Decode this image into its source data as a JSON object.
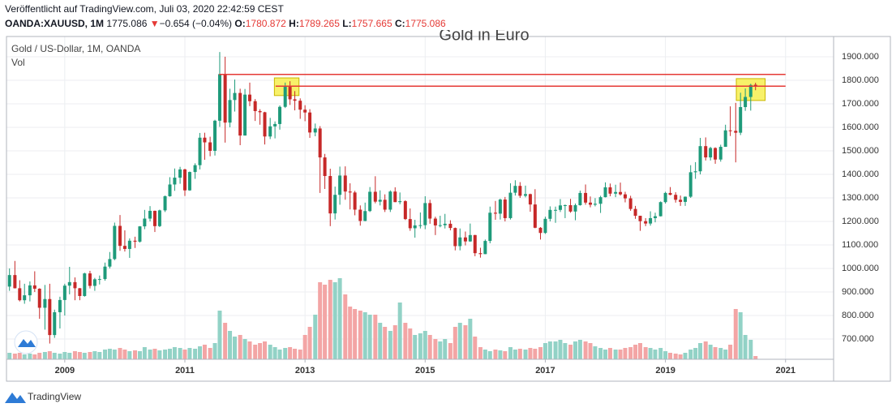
{
  "header": {
    "published": "Veröffentlicht auf TradingView.com, Juli 03, 2020 22:42:59 CEST",
    "symbol": "OANDA:XAUUSD, 1M",
    "last": "1775.086",
    "arrow": "▼",
    "change": "−0.654 (−0.04%)",
    "ohlc": [
      {
        "label": "O:",
        "value": "1780.872"
      },
      {
        "label": "H:",
        "value": "1789.265"
      },
      {
        "label": "L:",
        "value": "1757.665"
      },
      {
        "label": "C:",
        "value": "1775.086"
      }
    ]
  },
  "footer": "TradingView",
  "chart_data": {
    "type": "candlestick",
    "title": "Gold in Euro",
    "name": "Gold / US-Dollar, 1M, OANDA",
    "up_color": "#1e9a7a",
    "down_color": "#c62828",
    "grid": true,
    "xlim": [
      2008.03,
      2021.8
    ],
    "xticks": [
      2009,
      2011,
      2013,
      2015,
      2017,
      2019,
      2021
    ],
    "ylim": [
      614,
      1986
    ],
    "yticks": [
      {
        "value": 700,
        "label": "700.000"
      },
      {
        "value": 800,
        "label": "800.000"
      },
      {
        "value": 900,
        "label": "900.000"
      },
      {
        "value": 1000,
        "label": "1000.000"
      },
      {
        "value": 1100,
        "label": "1100.000"
      },
      {
        "value": 1200,
        "label": "1200.000"
      },
      {
        "value": 1300,
        "label": "1300.000"
      },
      {
        "value": 1400,
        "label": "1400.000"
      },
      {
        "value": 1500,
        "label": "1500.000"
      },
      {
        "value": 1600,
        "label": "1600.000"
      },
      {
        "value": 1700,
        "label": "1700.000"
      },
      {
        "value": 1800,
        "label": "1800.000"
      },
      {
        "value": 1900,
        "label": "1900.000"
      }
    ],
    "x": [
      2008.08,
      2008.17,
      2008.25,
      2008.33,
      2008.42,
      2008.5,
      2008.58,
      2008.67,
      2008.75,
      2008.83,
      2008.92,
      2009,
      2009.08,
      2009.17,
      2009.25,
      2009.33,
      2009.42,
      2009.5,
      2009.58,
      2009.67,
      2009.75,
      2009.83,
      2009.92,
      2010,
      2010.08,
      2010.17,
      2010.25,
      2010.33,
      2010.42,
      2010.5,
      2010.58,
      2010.67,
      2010.75,
      2010.83,
      2010.92,
      2011,
      2011.08,
      2011.17,
      2011.25,
      2011.33,
      2011.42,
      2011.5,
      2011.58,
      2011.67,
      2011.75,
      2011.83,
      2011.92,
      2012,
      2012.08,
      2012.17,
      2012.25,
      2012.33,
      2012.42,
      2012.5,
      2012.58,
      2012.67,
      2012.75,
      2012.83,
      2012.92,
      2013,
      2013.08,
      2013.17,
      2013.25,
      2013.33,
      2013.42,
      2013.5,
      2013.58,
      2013.67,
      2013.75,
      2013.83,
      2013.92,
      2014,
      2014.08,
      2014.17,
      2014.25,
      2014.33,
      2014.42,
      2014.5,
      2014.58,
      2014.67,
      2014.75,
      2014.83,
      2014.92,
      2015,
      2015.08,
      2015.17,
      2015.25,
      2015.33,
      2015.42,
      2015.5,
      2015.58,
      2015.67,
      2015.75,
      2015.83,
      2015.92,
      2016,
      2016.08,
      2016.17,
      2016.25,
      2016.33,
      2016.42,
      2016.5,
      2016.58,
      2016.67,
      2016.75,
      2016.83,
      2016.92,
      2017,
      2017.08,
      2017.17,
      2017.25,
      2017.33,
      2017.42,
      2017.5,
      2017.58,
      2017.67,
      2017.75,
      2017.83,
      2017.92,
      2018,
      2018.08,
      2018.17,
      2018.25,
      2018.33,
      2018.42,
      2018.5,
      2018.58,
      2018.67,
      2018.75,
      2018.83,
      2018.92,
      2019,
      2019.08,
      2019.17,
      2019.25,
      2019.33,
      2019.42,
      2019.5,
      2019.58,
      2019.67,
      2019.75,
      2019.83,
      2019.92,
      2020,
      2020.08,
      2020.17,
      2020.25,
      2020.33,
      2020.42,
      2020.5
    ],
    "candles": [
      [
        923,
        1000,
        905,
        972
      ],
      [
        972,
        1032,
        915,
        916
      ],
      [
        916,
        950,
        860,
        865
      ],
      [
        865,
        935,
        850,
        886
      ],
      [
        886,
        945,
        860,
        928
      ],
      [
        928,
        988,
        900,
        914
      ],
      [
        914,
        916,
        786,
        833
      ],
      [
        833,
        930,
        740,
        870
      ],
      [
        870,
        935,
        681,
        717
      ],
      [
        717,
        825,
        705,
        814
      ],
      [
        814,
        880,
        745,
        866
      ],
      [
        866,
        935,
        800,
        927
      ],
      [
        927,
        1007,
        890,
        942
      ],
      [
        942,
        962,
        865,
        916
      ],
      [
        916,
        917,
        865,
        883
      ],
      [
        883,
        982,
        880,
        979
      ],
      [
        979,
        990,
        915,
        926
      ],
      [
        926,
        960,
        905,
        954
      ],
      [
        954,
        970,
        932,
        955
      ],
      [
        955,
        1025,
        948,
        1008
      ],
      [
        1008,
        1070,
        1000,
        1040
      ],
      [
        1040,
        1195,
        1035,
        1181
      ],
      [
        1181,
        1227,
        1075,
        1096
      ],
      [
        1096,
        1162,
        1072,
        1083
      ],
      [
        1083,
        1128,
        1045,
        1118
      ],
      [
        1118,
        1135,
        1087,
        1114
      ],
      [
        1114,
        1180,
        1110,
        1179
      ],
      [
        1179,
        1249,
        1167,
        1212
      ],
      [
        1212,
        1265,
        1200,
        1245
      ],
      [
        1245,
        1246,
        1155,
        1180
      ],
      [
        1180,
        1250,
        1176,
        1247
      ],
      [
        1247,
        1310,
        1240,
        1307
      ],
      [
        1307,
        1388,
        1305,
        1357
      ],
      [
        1357,
        1425,
        1330,
        1386
      ],
      [
        1386,
        1432,
        1360,
        1421
      ],
      [
        1421,
        1424,
        1308,
        1332
      ],
      [
        1332,
        1412,
        1330,
        1410
      ],
      [
        1410,
        1447,
        1381,
        1439
      ],
      [
        1439,
        1576,
        1421,
        1556
      ],
      [
        1556,
        1577,
        1462,
        1536
      ],
      [
        1536,
        1560,
        1477,
        1500
      ],
      [
        1500,
        1632,
        1480,
        1628
      ],
      [
        1628,
        1920,
        1602,
        1826
      ],
      [
        1826,
        1900,
        1535,
        1620
      ],
      [
        1620,
        1764,
        1600,
        1716
      ],
      [
        1716,
        1803,
        1667,
        1746
      ],
      [
        1746,
        1764,
        1524,
        1565
      ],
      [
        1565,
        1763,
        1565,
        1739
      ],
      [
        1739,
        1790,
        1690,
        1711
      ],
      [
        1711,
        1720,
        1627,
        1669
      ],
      [
        1669,
        1677,
        1611,
        1664
      ],
      [
        1664,
        1666,
        1527,
        1561
      ],
      [
        1561,
        1640,
        1550,
        1604
      ],
      [
        1604,
        1625,
        1553,
        1614
      ],
      [
        1614,
        1693,
        1590,
        1687
      ],
      [
        1687,
        1790,
        1682,
        1772
      ],
      [
        1772,
        1796,
        1695,
        1719
      ],
      [
        1719,
        1754,
        1672,
        1713
      ],
      [
        1713,
        1723,
        1636,
        1675
      ],
      [
        1675,
        1694,
        1626,
        1663
      ],
      [
        1663,
        1677,
        1555,
        1578
      ],
      [
        1578,
        1616,
        1562,
        1595
      ],
      [
        1595,
        1605,
        1321,
        1472
      ],
      [
        1472,
        1487,
        1338,
        1393
      ],
      [
        1393,
        1424,
        1180,
        1234
      ],
      [
        1234,
        1348,
        1208,
        1313
      ],
      [
        1313,
        1433,
        1271,
        1395
      ],
      [
        1395,
        1434,
        1292,
        1327
      ],
      [
        1327,
        1362,
        1251,
        1323
      ],
      [
        1323,
        1330,
        1226,
        1250
      ],
      [
        1250,
        1268,
        1182,
        1202
      ],
      [
        1202,
        1280,
        1201,
        1244
      ],
      [
        1244,
        1346,
        1240,
        1326
      ],
      [
        1326,
        1392,
        1277,
        1284
      ],
      [
        1284,
        1332,
        1268,
        1292
      ],
      [
        1292,
        1315,
        1240,
        1250
      ],
      [
        1250,
        1332,
        1240,
        1327
      ],
      [
        1327,
        1345,
        1282,
        1282
      ],
      [
        1282,
        1323,
        1273,
        1286
      ],
      [
        1286,
        1290,
        1206,
        1210
      ],
      [
        1210,
        1255,
        1160,
        1171
      ],
      [
        1171,
        1207,
        1131,
        1183
      ],
      [
        1183,
        1238,
        1170,
        1184
      ],
      [
        1184,
        1307,
        1167,
        1278
      ],
      [
        1278,
        1292,
        1190,
        1212
      ],
      [
        1212,
        1220,
        1142,
        1183
      ],
      [
        1183,
        1224,
        1175,
        1184
      ],
      [
        1184,
        1232,
        1170,
        1190
      ],
      [
        1190,
        1205,
        1162,
        1172
      ],
      [
        1172,
        1174,
        1077,
        1095
      ],
      [
        1095,
        1170,
        1077,
        1132
      ],
      [
        1132,
        1157,
        1098,
        1115
      ],
      [
        1115,
        1191,
        1113,
        1142
      ],
      [
        1142,
        1143,
        1052,
        1065
      ],
      [
        1065,
        1088,
        1046,
        1061
      ],
      [
        1061,
        1123,
        1061,
        1117
      ],
      [
        1117,
        1263,
        1107,
        1237
      ],
      [
        1237,
        1287,
        1207,
        1233
      ],
      [
        1233,
        1297,
        1208,
        1293
      ],
      [
        1293,
        1304,
        1200,
        1214
      ],
      [
        1214,
        1362,
        1208,
        1322
      ],
      [
        1322,
        1375,
        1310,
        1351
      ],
      [
        1351,
        1367,
        1300,
        1309
      ],
      [
        1309,
        1352,
        1302,
        1316
      ],
      [
        1316,
        1318,
        1241,
        1272
      ],
      [
        1272,
        1337,
        1171,
        1173
      ],
      [
        1173,
        1176,
        1123,
        1151
      ],
      [
        1151,
        1220,
        1147,
        1211
      ],
      [
        1211,
        1264,
        1200,
        1249
      ],
      [
        1249,
        1263,
        1194,
        1249
      ],
      [
        1249,
        1295,
        1240,
        1268
      ],
      [
        1268,
        1272,
        1214,
        1269
      ],
      [
        1269,
        1296,
        1237,
        1242
      ],
      [
        1242,
        1276,
        1205,
        1269
      ],
      [
        1269,
        1331,
        1267,
        1321
      ],
      [
        1321,
        1357,
        1271,
        1280
      ],
      [
        1280,
        1306,
        1260,
        1271
      ],
      [
        1271,
        1299,
        1264,
        1275
      ],
      [
        1275,
        1309,
        1236,
        1303
      ],
      [
        1303,
        1366,
        1302,
        1345
      ],
      [
        1345,
        1361,
        1307,
        1318
      ],
      [
        1318,
        1356,
        1303,
        1325
      ],
      [
        1325,
        1365,
        1310,
        1315
      ],
      [
        1315,
        1326,
        1281,
        1298
      ],
      [
        1298,
        1309,
        1245,
        1253
      ],
      [
        1253,
        1266,
        1211,
        1224
      ],
      [
        1224,
        1224,
        1160,
        1201
      ],
      [
        1201,
        1214,
        1180,
        1191
      ],
      [
        1191,
        1243,
        1182,
        1214
      ],
      [
        1214,
        1237,
        1196,
        1222
      ],
      [
        1222,
        1285,
        1221,
        1282
      ],
      [
        1282,
        1326,
        1276,
        1321
      ],
      [
        1321,
        1346,
        1311,
        1313
      ],
      [
        1313,
        1324,
        1280,
        1292
      ],
      [
        1292,
        1310,
        1266,
        1283
      ],
      [
        1283,
        1306,
        1266,
        1305
      ],
      [
        1305,
        1439,
        1300,
        1409
      ],
      [
        1409,
        1452,
        1381,
        1413
      ],
      [
        1413,
        1555,
        1400,
        1520
      ],
      [
        1520,
        1557,
        1459,
        1472
      ],
      [
        1472,
        1517,
        1459,
        1512
      ],
      [
        1512,
        1515,
        1445,
        1463
      ],
      [
        1463,
        1526,
        1454,
        1517
      ],
      [
        1517,
        1611,
        1517,
        1587
      ],
      [
        1587,
        1689,
        1563,
        1585
      ],
      [
        1585,
        1704,
        1451,
        1577
      ],
      [
        1577,
        1747,
        1567,
        1686
      ],
      [
        1686,
        1765,
        1670,
        1729
      ],
      [
        1729,
        1785,
        1671,
        1780
      ],
      [
        1780.872,
        1789.265,
        1757.665,
        1775.086
      ]
    ],
    "volume": {
      "name": "Vol",
      "ylim": [
        0,
        100
      ],
      "up_color": "#92d2c6",
      "down_color": "#f3a5a5",
      "values": [
        8,
        7,
        8,
        6,
        7,
        6,
        8,
        9,
        10,
        8,
        7,
        9,
        8,
        10,
        9,
        8,
        9,
        10,
        9,
        12,
        13,
        12,
        14,
        12,
        10,
        11,
        10,
        15,
        12,
        13,
        11,
        12,
        13,
        15,
        14,
        12,
        14,
        13,
        16,
        18,
        14,
        20,
        60,
        45,
        35,
        28,
        30,
        25,
        22,
        18,
        20,
        22,
        18,
        15,
        12,
        14,
        15,
        13,
        12,
        30,
        40,
        55,
        95,
        92,
        98,
        95,
        100,
        80,
        65,
        62,
        60,
        58,
        55,
        55,
        45,
        40,
        35,
        42,
        70,
        45,
        38,
        30,
        32,
        35,
        30,
        25,
        22,
        25,
        20,
        40,
        45,
        42,
        50,
        28,
        15,
        12,
        10,
        12,
        11,
        10,
        15,
        12,
        13,
        12,
        14,
        13,
        15,
        20,
        22,
        22,
        24,
        20,
        18,
        22,
        24,
        22,
        20,
        16,
        14,
        12,
        14,
        12,
        12,
        14,
        15,
        18,
        20,
        15,
        14,
        12,
        14,
        10,
        8,
        7,
        6,
        8,
        12,
        14,
        20,
        22,
        18,
        15,
        14,
        12,
        18,
        62,
        58,
        30,
        24,
        4
      ]
    },
    "hlines": [
      {
        "y": 1825,
        "x": [
          2011.57,
          2021
        ],
        "color": "#e53935"
      },
      {
        "y": 1775,
        "x": [
          2012.51,
          2021
        ],
        "color": "#e53935"
      }
    ],
    "boxes": [
      {
        "x": [
          2012.49,
          2012.9
        ],
        "y": [
          1735,
          1810
        ],
        "color": "#f7ef4f"
      },
      {
        "x": [
          2020.18,
          2020.66
        ],
        "y": [
          1714,
          1807
        ],
        "color": "#f7ef4f"
      }
    ]
  }
}
